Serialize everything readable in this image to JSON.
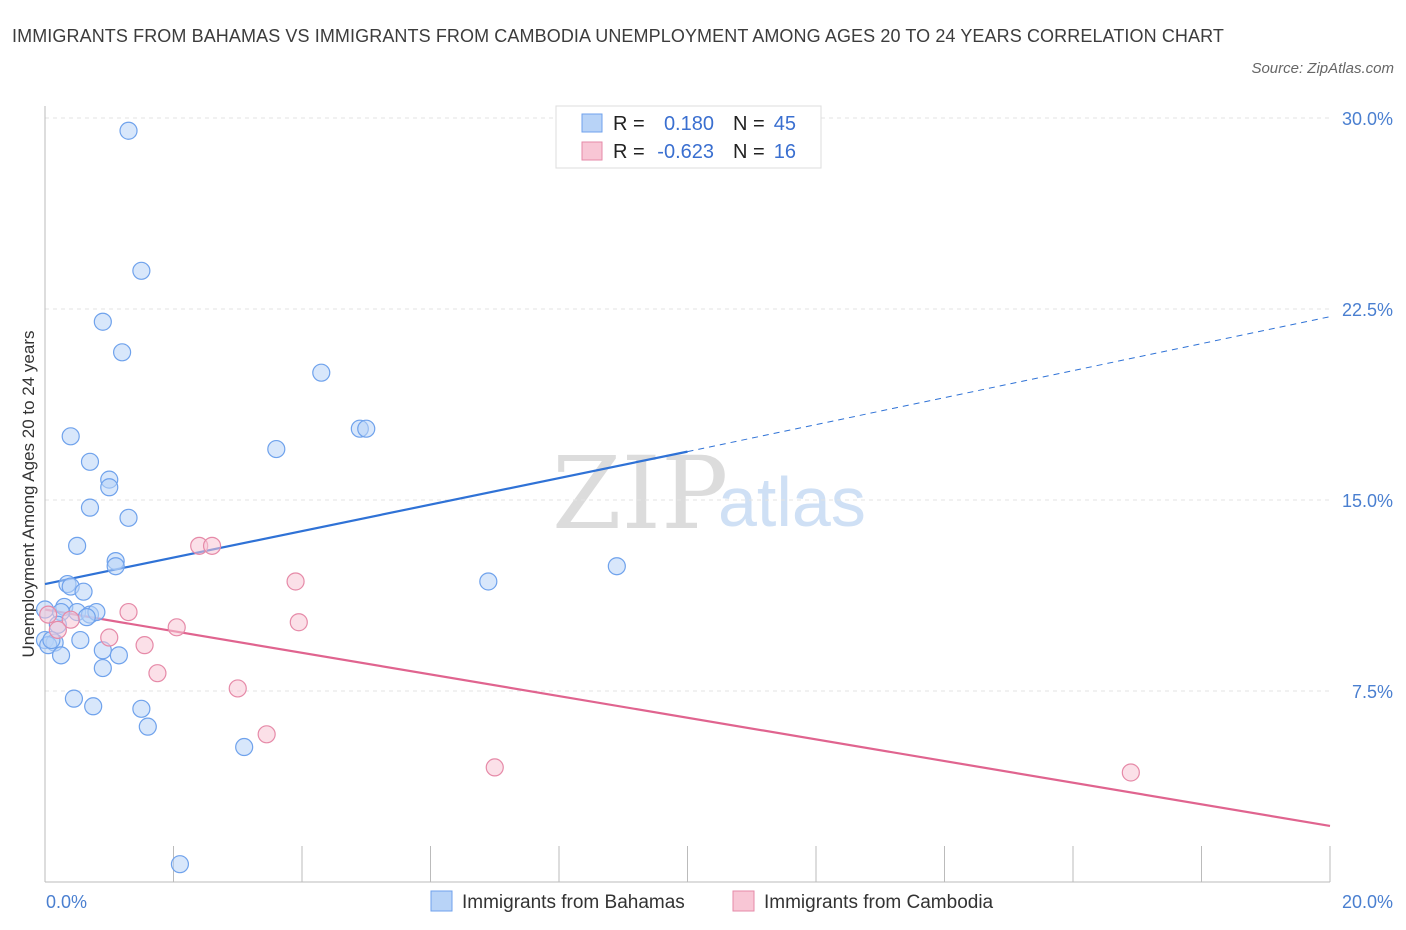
{
  "title": "IMMIGRANTS FROM BAHAMAS VS IMMIGRANTS FROM CAMBODIA UNEMPLOYMENT AMONG AGES 20 TO 24 YEARS CORRELATION CHART",
  "source": "Source: ZipAtlas.com",
  "watermark": {
    "zip": "ZIP",
    "atlas": "atlas"
  },
  "legend": {
    "r_label": "R =",
    "n_label": "N =",
    "rows": [
      {
        "name": "Immigrants from Bahamas",
        "r": "0.180",
        "n": "45",
        "color": "#6fa2ec",
        "fill": "#b8d3f7"
      },
      {
        "name": "Immigrants from Cambodia",
        "r": "-0.623",
        "n": "16",
        "color": "#e68aa8",
        "fill": "#f8c6d5"
      }
    ]
  },
  "chart_data": {
    "type": "scatter",
    "title": "IMMIGRANTS FROM BAHAMAS VS IMMIGRANTS FROM CAMBODIA UNEMPLOYMENT AMONG AGES 20 TO 24 YEARS CORRELATION CHART",
    "xlabel": "",
    "ylabel": "Unemployment Among Ages 20 to 24 years",
    "xlim": [
      0,
      20
    ],
    "ylim": [
      0,
      30
    ],
    "x_tick_labels": [
      {
        "value": 0,
        "label": "0.0%"
      },
      {
        "value": 20,
        "label": "20.0%"
      }
    ],
    "y_tick_labels": [
      {
        "value": 7.5,
        "label": "7.5%"
      },
      {
        "value": 15,
        "label": "15.0%"
      },
      {
        "value": 22.5,
        "label": "22.5%"
      },
      {
        "value": 30,
        "label": "30.0%"
      }
    ],
    "series": [
      {
        "name": "Immigrants from Bahamas",
        "color": "#6fa2ec",
        "points": [
          [
            1.3,
            29.5
          ],
          [
            1.5,
            24.0
          ],
          [
            0.9,
            22.0
          ],
          [
            1.2,
            20.8
          ],
          [
            4.3,
            20.0
          ],
          [
            4.9,
            17.8
          ],
          [
            5.0,
            17.8
          ],
          [
            0.4,
            17.5
          ],
          [
            3.6,
            17.0
          ],
          [
            0.7,
            16.5
          ],
          [
            1.0,
            15.8
          ],
          [
            1.0,
            15.5
          ],
          [
            0.7,
            14.7
          ],
          [
            1.3,
            14.3
          ],
          [
            0.5,
            13.2
          ],
          [
            1.1,
            12.6
          ],
          [
            1.1,
            12.4
          ],
          [
            8.9,
            12.4
          ],
          [
            0.35,
            11.7
          ],
          [
            0.4,
            11.6
          ],
          [
            6.9,
            11.8
          ],
          [
            0.6,
            11.4
          ],
          [
            0.0,
            10.7
          ],
          [
            0.3,
            10.8
          ],
          [
            0.5,
            10.6
          ],
          [
            0.25,
            10.6
          ],
          [
            0.7,
            10.5
          ],
          [
            0.8,
            10.6
          ],
          [
            0.65,
            10.4
          ],
          [
            0.2,
            10.1
          ],
          [
            0.0,
            9.5
          ],
          [
            0.15,
            9.4
          ],
          [
            0.05,
            9.3
          ],
          [
            0.55,
            9.5
          ],
          [
            0.25,
            8.9
          ],
          [
            0.9,
            9.1
          ],
          [
            1.15,
            8.9
          ],
          [
            0.9,
            8.4
          ],
          [
            0.45,
            7.2
          ],
          [
            0.75,
            6.9
          ],
          [
            1.5,
            6.8
          ],
          [
            1.6,
            6.1
          ],
          [
            3.1,
            5.3
          ],
          [
            2.1,
            0.7
          ],
          [
            0.1,
            9.5
          ]
        ],
        "trend": {
          "x1": 0,
          "y1": 11.7,
          "x2": 10,
          "y2": 16.9,
          "dash_x2": 20,
          "dash_y2": 22.2
        }
      },
      {
        "name": "Immigrants from Cambodia",
        "color": "#e68aa8",
        "points": [
          [
            2.4,
            13.2
          ],
          [
            2.6,
            13.2
          ],
          [
            3.9,
            11.8
          ],
          [
            1.3,
            10.6
          ],
          [
            0.4,
            10.3
          ],
          [
            3.95,
            10.2
          ],
          [
            2.05,
            10.0
          ],
          [
            0.2,
            9.9
          ],
          [
            1.0,
            9.6
          ],
          [
            1.55,
            9.3
          ],
          [
            1.75,
            8.2
          ],
          [
            3.0,
            7.6
          ],
          [
            3.45,
            5.8
          ],
          [
            7.0,
            4.5
          ],
          [
            16.9,
            4.3
          ],
          [
            0.05,
            10.5
          ]
        ],
        "trend": {
          "x1": 0,
          "y1": 10.7,
          "x2": 20,
          "y2": 2.2
        }
      }
    ]
  }
}
